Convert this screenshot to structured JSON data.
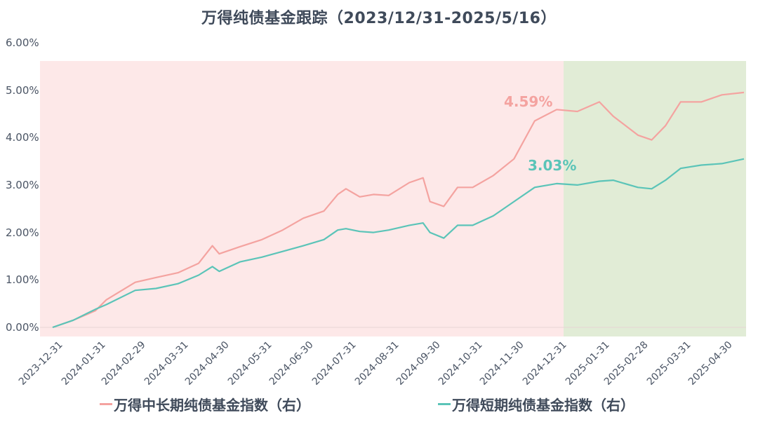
{
  "title": "万得纯债基金跟踪（2023/12/31-2025/5/16）",
  "colors": {
    "mid_long": "#f4a3a0",
    "short": "#5bc4b8",
    "bg_2024": "#fde8e8",
    "bg_2025": "#e1ecd6",
    "mid_long_2025": "#e0a890",
    "short_2025": "#4fc0a4",
    "annot_mid_long": "#f4a3a0",
    "annot_short": "#5bc4b8"
  },
  "y_axis": {
    "ticks": [
      "0.00%",
      "1.00%",
      "2.00%",
      "3.00%",
      "4.00%",
      "5.00%",
      "6.00%"
    ]
  },
  "x_axis": {
    "ticks": [
      "2023-12-31",
      "2024-01-31",
      "2024-02-29",
      "2024-03-31",
      "2024-04-30",
      "2024-05-31",
      "2024-06-30",
      "2024-07-31",
      "2024-08-31",
      "2024-09-30",
      "2024-10-31",
      "2024-11-30",
      "2024-12-31",
      "2025-01-31",
      "2025-02-28",
      "2025-03-31",
      "2025-04-30"
    ]
  },
  "annotations": {
    "mid_long_2024": "4.59%",
    "short_2024": "3.03%"
  },
  "legend": {
    "mid_long": "万得中长期纯债基金指数（右）",
    "short": "万得短期纯债基金指数（右）"
  },
  "chart_data": {
    "type": "line",
    "title": "万得纯债基金跟踪（2023/12/31-2025/5/16）",
    "xlabel": "",
    "ylabel": "",
    "ylim": [
      0,
      6
    ],
    "y_unit": "%",
    "grid": false,
    "legend_position": "bottom",
    "shaded_regions": [
      {
        "from": "2023-12-31",
        "to": "2024-12-31",
        "color": "#fde8e8"
      },
      {
        "from": "2024-12-31",
        "to": "2025-05-16",
        "color": "#e1ecd6"
      }
    ],
    "categories": [
      "2023-12-31",
      "2024-01-15",
      "2024-01-31",
      "2024-02-08",
      "2024-02-29",
      "2024-03-15",
      "2024-03-31",
      "2024-04-15",
      "2024-04-25",
      "2024-04-30",
      "2024-05-15",
      "2024-05-31",
      "2024-06-15",
      "2024-06-30",
      "2024-07-15",
      "2024-07-25",
      "2024-07-31",
      "2024-08-10",
      "2024-08-20",
      "2024-08-31",
      "2024-09-15",
      "2024-09-25",
      "2024-09-30",
      "2024-10-10",
      "2024-10-20",
      "2024-10-31",
      "2024-11-15",
      "2024-11-30",
      "2024-12-15",
      "2024-12-31",
      "2025-01-15",
      "2025-01-31",
      "2025-02-10",
      "2025-02-28",
      "2025-03-10",
      "2025-03-20",
      "2025-03-31",
      "2025-04-15",
      "2025-04-30",
      "2025-05-16"
    ],
    "series": [
      {
        "name": "万得中长期纯债基金指数（右）",
        "values": [
          0.0,
          0.15,
          0.35,
          0.58,
          0.95,
          1.05,
          1.15,
          1.35,
          1.72,
          1.55,
          1.7,
          1.85,
          2.05,
          2.3,
          2.45,
          2.8,
          2.92,
          2.75,
          2.8,
          2.78,
          3.05,
          3.15,
          2.65,
          2.55,
          2.95,
          2.95,
          3.2,
          3.55,
          4.35,
          4.59,
          4.55,
          4.75,
          4.45,
          4.05,
          3.95,
          4.25,
          4.75,
          4.75,
          4.9,
          4.95
        ]
      },
      {
        "name": "万得短期纯债基金指数（右）",
        "values": [
          0.0,
          0.15,
          0.38,
          0.48,
          0.78,
          0.82,
          0.92,
          1.1,
          1.28,
          1.18,
          1.38,
          1.48,
          1.6,
          1.72,
          1.85,
          2.05,
          2.08,
          2.02,
          2.0,
          2.05,
          2.15,
          2.2,
          2.0,
          1.88,
          2.15,
          2.15,
          2.35,
          2.65,
          2.95,
          3.03,
          3.0,
          3.08,
          3.1,
          2.95,
          2.92,
          3.1,
          3.35,
          3.42,
          3.45,
          3.55
        ]
      }
    ]
  }
}
